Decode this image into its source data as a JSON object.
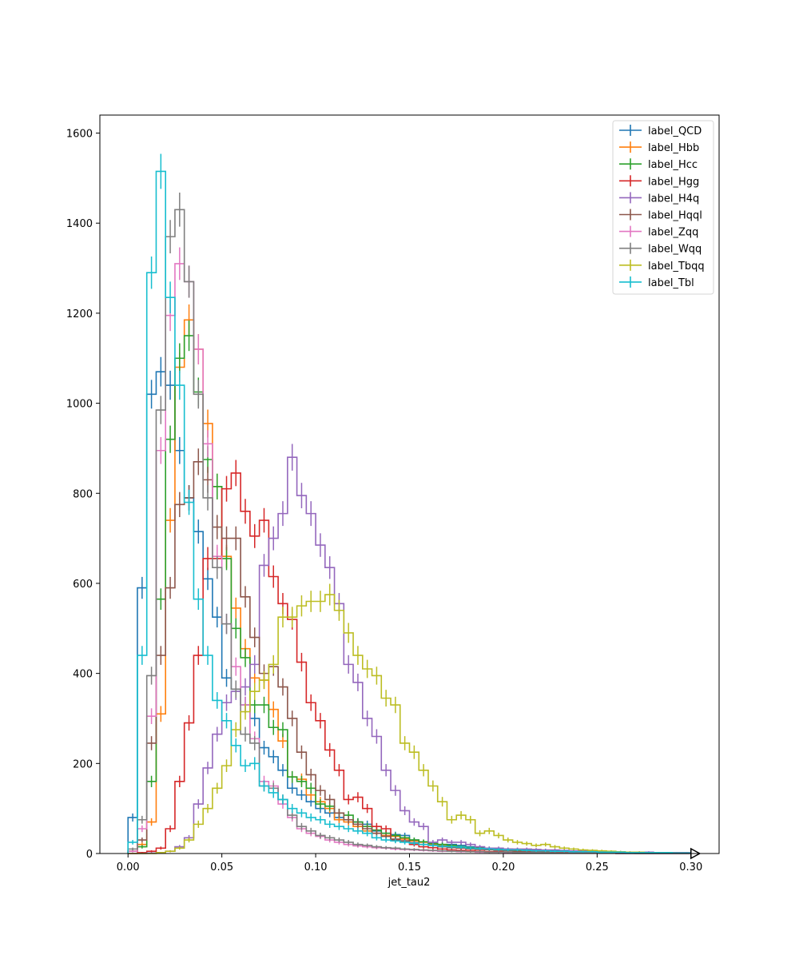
{
  "chart_data": {
    "type": "histogram",
    "xlabel": "jet_tau2",
    "ylabel": "",
    "title": "",
    "xlim": [
      -0.015,
      0.315
    ],
    "ylim": [
      0,
      1640
    ],
    "x_ticks": [
      "0.00",
      "0.05",
      "0.10",
      "0.15",
      "0.20",
      "0.25",
      "0.30"
    ],
    "y_ticks": [
      "0",
      "200",
      "400",
      "600",
      "800",
      "1000",
      "1200",
      "1400",
      "1600"
    ],
    "bin_width": 0.005,
    "bin_start": 0.0,
    "grid": false,
    "legend_position": "top-right",
    "marker_at_end": "triangle-right",
    "series": [
      {
        "name": "label_QCD",
        "color": "#1f77b4",
        "values": [
          80,
          590,
          1020,
          1070,
          1040,
          895,
          790,
          715,
          610,
          525,
          390,
          365,
          330,
          300,
          235,
          215,
          185,
          145,
          130,
          115,
          100,
          90,
          80,
          75,
          70,
          65,
          50,
          45,
          42,
          40,
          30,
          26,
          22,
          20,
          20,
          18,
          15,
          14,
          12,
          10,
          10,
          9,
          8,
          8,
          7,
          6,
          6,
          5,
          5,
          4,
          4,
          4,
          3,
          3,
          3,
          3,
          2,
          2,
          2,
          2
        ]
      },
      {
        "name": "label_Hbb",
        "color": "#ff7f0e",
        "values": [
          5,
          20,
          70,
          310,
          740,
          1080,
          1185,
          1120,
          955,
          815,
          660,
          545,
          455,
          390,
          385,
          320,
          250,
          170,
          165,
          130,
          115,
          100,
          75,
          70,
          60,
          50,
          45,
          40,
          38,
          32,
          28,
          25,
          20,
          18,
          15,
          12,
          12,
          10,
          9,
          8,
          7,
          6,
          6,
          5,
          4,
          4,
          3,
          3,
          3,
          2,
          2,
          2,
          2,
          1,
          1,
          1,
          1,
          1,
          1,
          1
        ]
      },
      {
        "name": "label_Hcc",
        "color": "#2ca02c",
        "values": [
          5,
          15,
          160,
          565,
          920,
          1100,
          1150,
          1025,
          875,
          815,
          655,
          500,
          435,
          330,
          330,
          280,
          275,
          170,
          160,
          145,
          110,
          105,
          90,
          85,
          70,
          60,
          52,
          45,
          40,
          35,
          30,
          26,
          22,
          20,
          18,
          15,
          13,
          12,
          10,
          9,
          8,
          7,
          6,
          5,
          5,
          4,
          4,
          3,
          3,
          3,
          2,
          2,
          2,
          2,
          1,
          1,
          1,
          1,
          1,
          1
        ]
      },
      {
        "name": "label_Hgg",
        "color": "#d62728",
        "values": [
          0,
          2,
          5,
          12,
          55,
          160,
          290,
          440,
          655,
          655,
          810,
          845,
          760,
          705,
          740,
          615,
          555,
          520,
          425,
          335,
          295,
          230,
          185,
          120,
          125,
          100,
          60,
          55,
          30,
          28,
          20,
          15,
          13,
          10,
          8,
          7,
          6,
          5,
          4,
          4,
          3,
          3,
          3,
          2,
          2,
          2,
          2,
          1,
          1,
          1,
          1,
          1,
          1,
          1,
          0,
          0,
          0,
          0,
          0,
          0
        ]
      },
      {
        "name": "label_H4q",
        "color": "#9467bd",
        "values": [
          0,
          0,
          1,
          2,
          5,
          15,
          35,
          110,
          190,
          265,
          335,
          360,
          370,
          420,
          640,
          700,
          755,
          880,
          795,
          755,
          685,
          635,
          555,
          420,
          380,
          300,
          260,
          185,
          140,
          95,
          70,
          60,
          25,
          30,
          25,
          25,
          20,
          15,
          12,
          12,
          10,
          10,
          10,
          9,
          8,
          8,
          7,
          6,
          6,
          5,
          5,
          4,
          4,
          3,
          3,
          3,
          2,
          2,
          2,
          2
        ]
      },
      {
        "name": "label_Hqql",
        "color": "#8c564b",
        "values": [
          5,
          30,
          245,
          440,
          590,
          775,
          790,
          870,
          830,
          725,
          700,
          700,
          570,
          480,
          400,
          415,
          370,
          300,
          225,
          175,
          140,
          120,
          90,
          75,
          65,
          55,
          45,
          38,
          32,
          28,
          24,
          20,
          18,
          15,
          13,
          12,
          10,
          9,
          8,
          7,
          6,
          5,
          5,
          4,
          4,
          3,
          3,
          3,
          2,
          2,
          2,
          2,
          1,
          1,
          1,
          1,
          1,
          1,
          1,
          1
        ]
      },
      {
        "name": "label_Zqq",
        "color": "#e377c2",
        "values": [
          5,
          55,
          305,
          895,
          1195,
          1310,
          1270,
          1120,
          910,
          660,
          510,
          415,
          330,
          255,
          160,
          150,
          110,
          80,
          55,
          45,
          38,
          30,
          25,
          20,
          17,
          15,
          13,
          12,
          10,
          9,
          8,
          7,
          6,
          5,
          5,
          4,
          4,
          3,
          3,
          3,
          2,
          2,
          2,
          2,
          1,
          1,
          1,
          1,
          1,
          1,
          1,
          1,
          0,
          0,
          0,
          0,
          0,
          0,
          0,
          0
        ]
      },
      {
        "name": "label_Wqq",
        "color": "#7f7f7f",
        "values": [
          10,
          75,
          395,
          985,
          1370,
          1430,
          1270,
          1020,
          790,
          635,
          510,
          365,
          265,
          245,
          150,
          145,
          120,
          85,
          60,
          50,
          40,
          35,
          30,
          25,
          20,
          18,
          15,
          13,
          12,
          10,
          9,
          8,
          7,
          6,
          5,
          5,
          4,
          4,
          3,
          3,
          3,
          2,
          2,
          2,
          2,
          1,
          1,
          1,
          1,
          1,
          1,
          1,
          0,
          0,
          0,
          0,
          0,
          0,
          0,
          0
        ]
      },
      {
        "name": "label_Tbqq",
        "color": "#bcbd22",
        "values": [
          0,
          0,
          0,
          2,
          5,
          12,
          30,
          65,
          100,
          145,
          195,
          275,
          315,
          360,
          385,
          420,
          525,
          525,
          550,
          560,
          560,
          575,
          540,
          490,
          440,
          410,
          395,
          345,
          330,
          245,
          225,
          185,
          150,
          115,
          75,
          85,
          75,
          45,
          50,
          40,
          30,
          25,
          22,
          18,
          20,
          15,
          12,
          10,
          8,
          7,
          6,
          5,
          4,
          3,
          3,
          2,
          2,
          2,
          1,
          1
        ]
      },
      {
        "name": "label_Tbl",
        "color": "#17becf",
        "values": [
          25,
          440,
          1290,
          1515,
          1235,
          1040,
          780,
          565,
          440,
          340,
          295,
          240,
          195,
          200,
          150,
          135,
          120,
          100,
          90,
          80,
          75,
          65,
          60,
          55,
          50,
          45,
          35,
          30,
          28,
          25,
          23,
          20,
          18,
          16,
          15,
          14,
          12,
          11,
          10,
          9,
          8,
          8,
          7,
          6,
          6,
          5,
          5,
          4,
          4,
          4,
          3,
          3,
          3,
          2,
          2,
          2,
          2,
          2,
          1,
          1
        ]
      }
    ]
  }
}
